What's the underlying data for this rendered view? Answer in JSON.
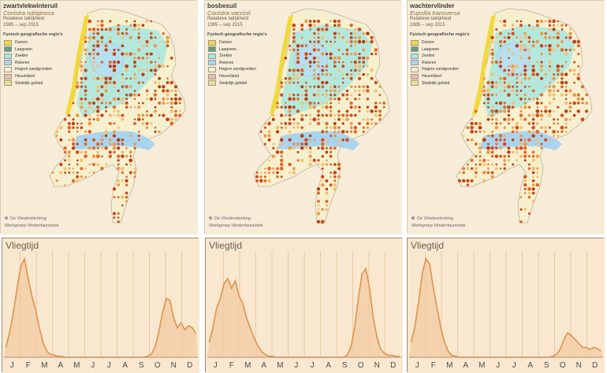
{
  "maps": [
    {
      "name": "zwartvlekwinteruil",
      "latin": "Conistra rubiginosa"
    },
    {
      "name": "bosbesuil",
      "latin": "Conistra vaccinii"
    },
    {
      "name": "wachtervlinder",
      "latin": "Eupsilia transversa"
    }
  ],
  "map_common": {
    "subtitle": "Relatieve talrijkheid",
    "period": "1985 – sep 2015",
    "legend_title": "Fysisch geografische regio's",
    "legend": [
      {
        "label": "Duinen",
        "color": "#f2d93a"
      },
      {
        "label": "Laagveen",
        "color": "#6d9c7c"
      },
      {
        "label": "Zeeklei",
        "color": "#a8e6df"
      },
      {
        "label": "Rivieren",
        "color": "#a9d4ee"
      },
      {
        "label": "Hogere zandgronden",
        "color": "#f6efc6"
      },
      {
        "label": "Heuvelland",
        "color": "#f2b9a8"
      },
      {
        "label": "Stedelijk gebied",
        "color": "#efe08a"
      }
    ],
    "credit1": "De Vlinderstichting",
    "credit2": "Werkgroep Vlinderfaunistiek"
  },
  "flight": {
    "title": "Vliegtijd",
    "months": [
      "J",
      "F",
      "M",
      "A",
      "M",
      "J",
      "J",
      "A",
      "S",
      "O",
      "N",
      "D"
    ],
    "line_color": "#e0924a",
    "fill_color": "#f2c9a0"
  },
  "chart_data": [
    {
      "type": "area",
      "title": "Vliegtijd",
      "x": "week of year",
      "note": "relative abundance, zwartvlekwinteruil",
      "values": [
        0.1,
        0.25,
        0.45,
        0.7,
        0.92,
        1.0,
        0.8,
        0.62,
        0.48,
        0.3,
        0.15,
        0.06,
        0.03,
        0.02,
        0.01,
        0.01,
        0,
        0,
        0,
        0,
        0,
        0,
        0,
        0,
        0,
        0,
        0,
        0,
        0,
        0,
        0,
        0,
        0,
        0,
        0,
        0,
        0,
        0,
        0.01,
        0.03,
        0.1,
        0.25,
        0.45,
        0.6,
        0.58,
        0.4,
        0.3,
        0.35,
        0.28,
        0.32,
        0.3,
        0.24
      ]
    },
    {
      "type": "area",
      "title": "Vliegtijd",
      "x": "week of year",
      "note": "relative abundance, bosbesuil",
      "values": [
        0.15,
        0.3,
        0.5,
        0.6,
        0.75,
        0.8,
        0.7,
        0.78,
        0.62,
        0.55,
        0.4,
        0.3,
        0.2,
        0.12,
        0.06,
        0.03,
        0.01,
        0.01,
        0,
        0,
        0,
        0,
        0,
        0,
        0,
        0,
        0,
        0,
        0,
        0,
        0,
        0,
        0,
        0,
        0,
        0,
        0,
        0.02,
        0.1,
        0.3,
        0.6,
        0.85,
        0.9,
        0.7,
        0.4,
        0.2,
        0.08,
        0.04,
        0.02,
        0.02,
        0.01,
        0.01
      ]
    },
    {
      "type": "area",
      "title": "Vliegtijd",
      "x": "week of year",
      "note": "relative abundance, wachtervlinder",
      "values": [
        0.15,
        0.3,
        0.55,
        0.85,
        1.0,
        0.95,
        0.7,
        0.5,
        0.3,
        0.15,
        0.06,
        0.02,
        0.01,
        0,
        0,
        0,
        0,
        0,
        0,
        0,
        0,
        0,
        0,
        0,
        0,
        0,
        0,
        0,
        0,
        0,
        0,
        0,
        0,
        0,
        0,
        0,
        0,
        0,
        0.01,
        0.03,
        0.08,
        0.18,
        0.25,
        0.22,
        0.18,
        0.14,
        0.1,
        0.1,
        0.08,
        0.1,
        0.09,
        0.06
      ]
    }
  ]
}
